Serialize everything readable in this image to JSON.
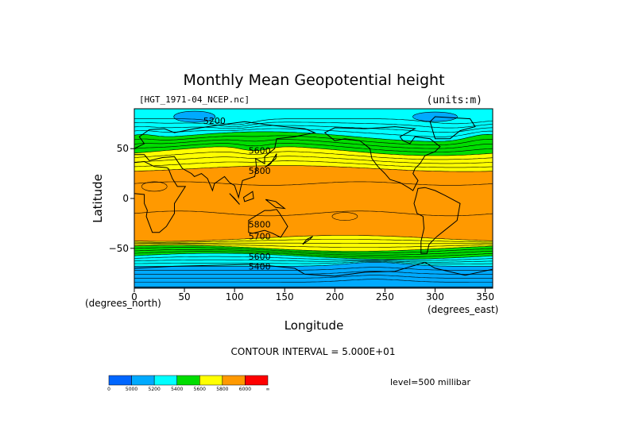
{
  "chart_data": {
    "type": "heatmap",
    "title": "Monthly Mean Geopotential height",
    "source_label": "[HGT_1971-04_NCEP.nc]",
    "units_label": "(units:m)",
    "xlabel": "Longitude",
    "ylabel": "Latitude",
    "x_units": "(degrees_east)",
    "y_units": "(degrees_north)",
    "xlim": [
      0,
      357.5
    ],
    "ylim": [
      -90,
      90
    ],
    "x_ticks": [
      0,
      50,
      100,
      150,
      200,
      250,
      300,
      350
    ],
    "y_ticks": [
      50,
      0,
      -50
    ],
    "y_tick_labels": [
      "50",
      "0",
      "−50"
    ],
    "contour_interval_text": "CONTOUR INTERVAL = 5.000E+01",
    "level_text": "level=500 millibar",
    "contour_labels": [
      {
        "text": "5200",
        "lon": 80,
        "lat": 78
      },
      {
        "text": "5600",
        "lon": 125,
        "lat": 48
      },
      {
        "text": "5800",
        "lon": 125,
        "lat": 28
      },
      {
        "text": "5800",
        "lon": 125,
        "lat": -26
      },
      {
        "text": "5700",
        "lon": 125,
        "lat": -38
      },
      {
        "text": "5600",
        "lon": 125,
        "lat": -58
      },
      {
        "text": "5400",
        "lon": 125,
        "lat": -68
      }
    ],
    "colorbar": {
      "labels": [
        "0",
        "5000",
        "5200",
        "5400",
        "5600",
        "5800",
        "6000",
        "∞"
      ],
      "colors": [
        "#0066ff",
        "#00aaff",
        "#00ffff",
        "#00dd00",
        "#ffff00",
        "#ff9900",
        "#ff0000"
      ]
    }
  }
}
